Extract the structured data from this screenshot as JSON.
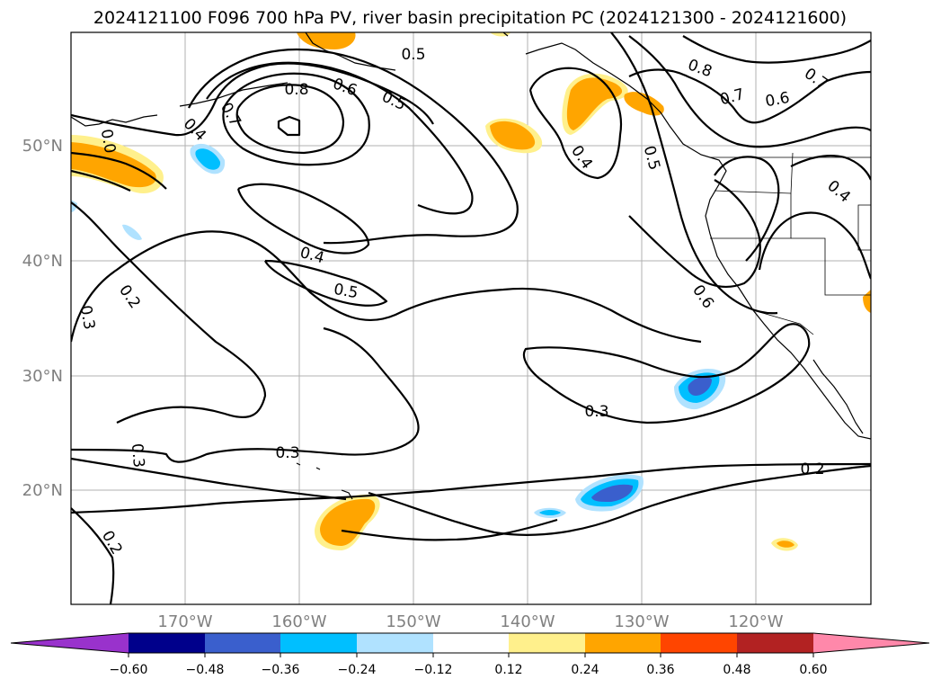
{
  "title": "2024121100 F096 700 hPa PV, river basin precipitation PC (2024121300 - 2024121600)",
  "map": {
    "lon_labels": [
      "170°W",
      "160°W",
      "150°W",
      "140°W",
      "130°W",
      "120°W"
    ],
    "lat_labels": [
      "50°N",
      "40°N",
      "30°N",
      "20°N"
    ]
  },
  "colorbar": {
    "ticks": [
      "−0.60",
      "−0.48",
      "−0.36",
      "−0.24",
      "−0.12",
      "0.12",
      "0.24",
      "0.36",
      "0.48",
      "0.60"
    ],
    "colors": {
      "lt_neg_060": "#9932cc",
      "neg_060_048": "#00008b",
      "neg_048_036": "#3a5fcd",
      "neg_036_024": "#00bfff",
      "neg_024_012": "#b0e2ff",
      "neg_012_012": "#ffffff",
      "pos_012_024": "#fff08c",
      "pos_024_036": "#ffa500",
      "pos_036_048": "#ff4500",
      "pos_048_060": "#b22222",
      "gt_060": "#ff88aa"
    }
  },
  "contour_labels": {
    "c1": "0.5",
    "c2": "0.6",
    "c3": "0.8",
    "c4": "0.5",
    "c5": "0.7",
    "c6": "0.4",
    "c7": "0.0",
    "c8": "0.4",
    "c9": "0.5",
    "c10": "0.2",
    "c11": "0.3",
    "c12": "0.3",
    "c13": "0.3",
    "c14": "0.2",
    "c15": "0.3",
    "c16": "0.2",
    "c17": "0.8",
    "c18": "0.7",
    "c19": "0.6",
    "c20": "0.7",
    "c21": "0.4",
    "c22": "0.5",
    "c23": "0.4",
    "c24": "0.6"
  }
}
